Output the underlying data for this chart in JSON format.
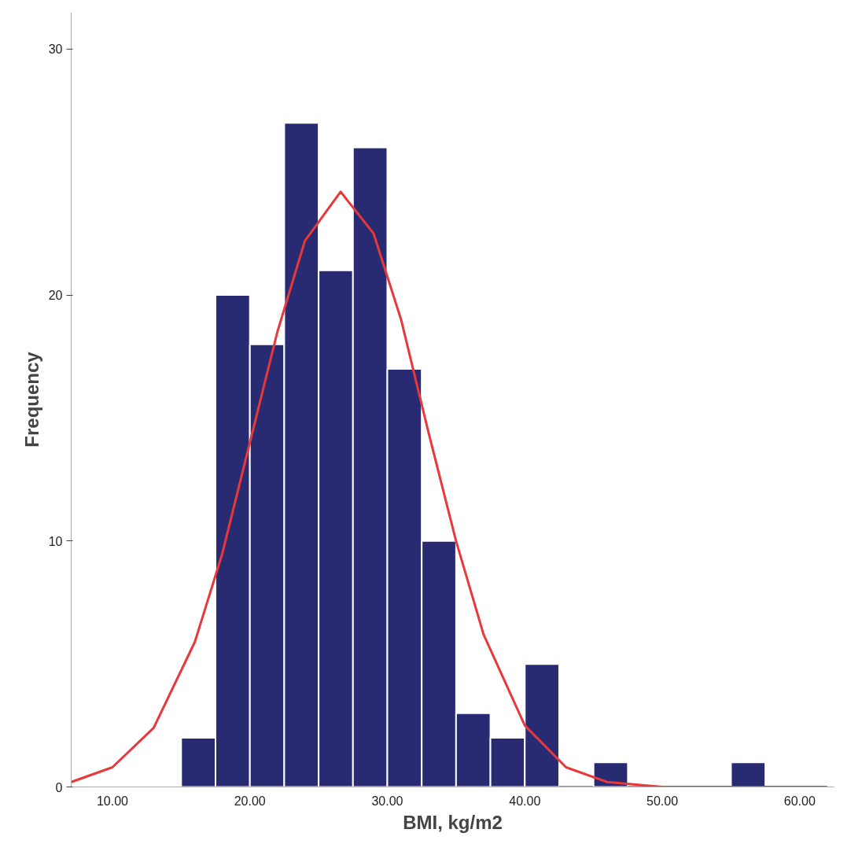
{
  "chart_data": {
    "type": "histogram",
    "xlabel": "BMI, kg/m2",
    "ylabel": "Frequency",
    "bins": [
      15,
      17.5,
      20,
      22.5,
      25,
      27.5,
      30,
      32.5,
      35,
      37.5,
      40,
      42.5,
      45,
      47.5,
      50,
      52.5,
      55,
      57.5
    ],
    "values": [
      2,
      20,
      18,
      27,
      21,
      26,
      17,
      10,
      3,
      2,
      5,
      0,
      1,
      0,
      0,
      0,
      1
    ],
    "color": "#282a72",
    "series": [
      {
        "type": "line",
        "color": "#e8383a",
        "x": [
          7,
          10,
          13,
          16,
          18,
          20,
          22,
          24,
          26.6,
          29,
          31,
          33,
          35,
          37,
          40,
          43,
          46,
          50,
          55,
          62
        ],
        "values": [
          0.2,
          0.8,
          2.4,
          5.9,
          9.5,
          14.0,
          18.5,
          22.2,
          24.2,
          22.5,
          19.0,
          14.4,
          10.0,
          6.2,
          2.5,
          0.8,
          0.2,
          0,
          0,
          0
        ]
      }
    ],
    "xlim": [
      7,
      62.5
    ],
    "ylim": [
      0,
      31.5
    ],
    "xticks": [
      {
        "value": 10,
        "label": "10.00"
      },
      {
        "value": 20,
        "label": "20.00"
      },
      {
        "value": 30,
        "label": "30.00"
      },
      {
        "value": 40,
        "label": "40.00"
      },
      {
        "value": 50,
        "label": "50.00"
      },
      {
        "value": 60,
        "label": "60.00"
      }
    ],
    "yticks": [
      0,
      10,
      20,
      30
    ],
    "grid": false
  }
}
